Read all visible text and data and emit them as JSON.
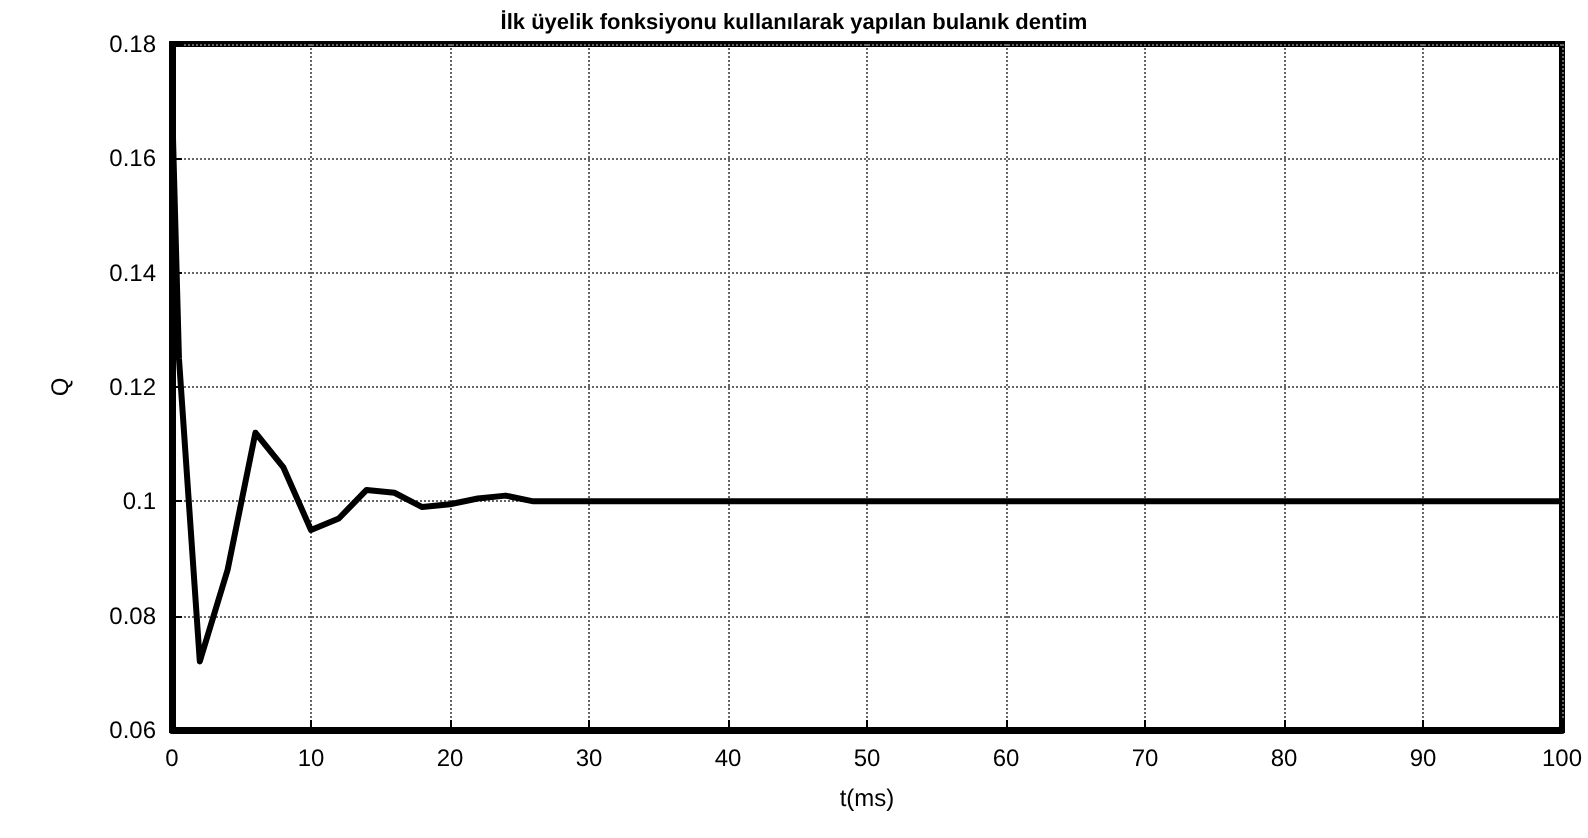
{
  "chart_data": {
    "type": "line",
    "title": "İlk üyelik fonksiyonu kullanılarak yapılan bulanık dentim",
    "xlabel": "t(ms)",
    "ylabel": "Q",
    "x": [
      0,
      0.5,
      2,
      4,
      6,
      8,
      10,
      12,
      14,
      16,
      18,
      20,
      22,
      24,
      26,
      30,
      40,
      50,
      60,
      70,
      80,
      90,
      100
    ],
    "series": [
      {
        "color": "#000000",
        "values": [
          0.17,
          0.125,
          0.072,
          0.088,
          0.112,
          0.106,
          0.095,
          0.097,
          0.102,
          0.1015,
          0.099,
          0.0995,
          0.1005,
          0.101,
          0.1,
          0.1,
          0.1,
          0.1,
          0.1,
          0.1,
          0.1,
          0.1,
          0.1
        ]
      }
    ],
    "xlim": [
      0,
      100
    ],
    "xticks": [
      0,
      10,
      20,
      30,
      40,
      50,
      60,
      70,
      80,
      90,
      100
    ],
    "ylim": [
      0.06,
      0.18
    ],
    "yticks": [
      0.06,
      0.08,
      0.1,
      0.12,
      0.14,
      0.16,
      0.18
    ],
    "grid": true,
    "marker": "none",
    "line_style": "solid"
  }
}
